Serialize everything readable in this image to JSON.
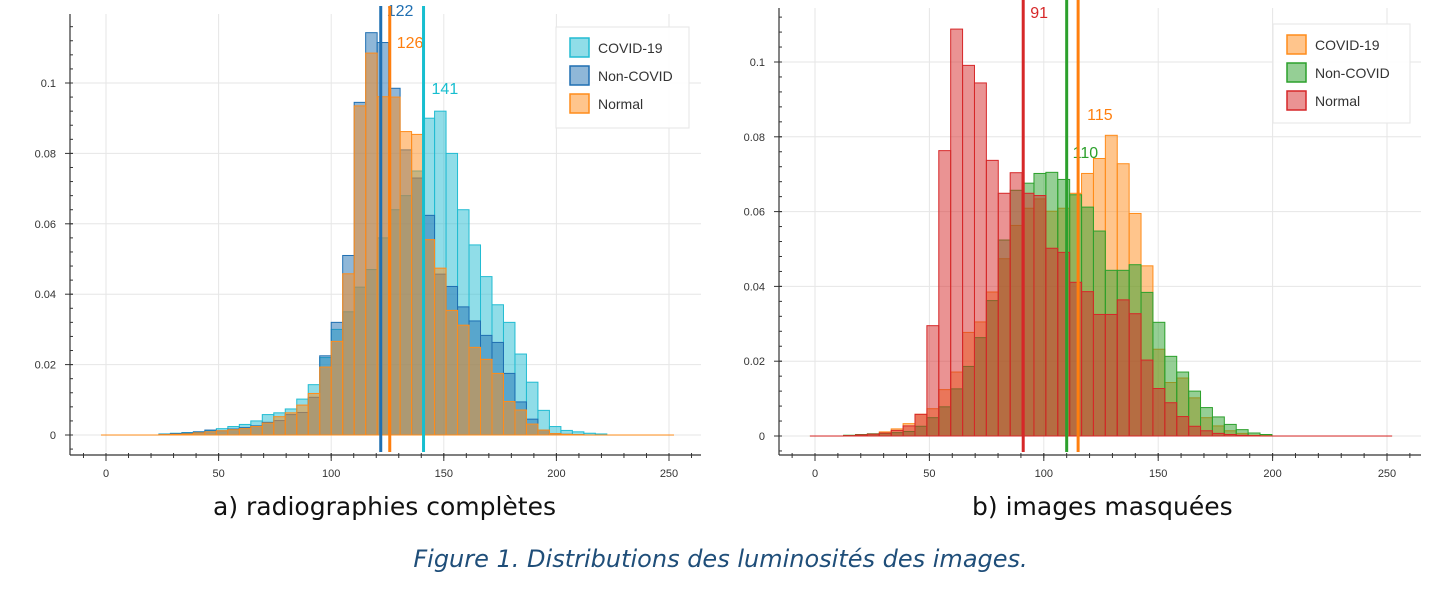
{
  "figure_caption": "Figure 1. Distributions des luminosités des images.",
  "chart_data": [
    {
      "type": "histogram",
      "caption": "a) radiographies complètes",
      "xlim": [
        -5,
        262
      ],
      "ylim": [
        -0.006,
        0.1195
      ],
      "xticks": [
        0,
        50,
        100,
        150,
        200,
        250
      ],
      "yticks": [
        0,
        0.02,
        0.04,
        0.06,
        0.08,
        0.1
      ],
      "ytick_labels": [
        "0",
        "0.02",
        "0.04",
        "0.06",
        "0.08",
        "0.1"
      ],
      "grid": true,
      "legend_position": "top-right",
      "bin_edges": [
        -2,
        23.5,
        28.6,
        33.7,
        38.8,
        43.9,
        49,
        54.1,
        59.2,
        64.3,
        69.4,
        74.5,
        79.6,
        84.7,
        89.8,
        94.9,
        100,
        105.1,
        110.2,
        115.3,
        120.4,
        125.5,
        130.6,
        135.7,
        140.8,
        145.9,
        151,
        156.1,
        161.2,
        166.3,
        171.4,
        176.5,
        181.6,
        186.7,
        191.8,
        196.9,
        202,
        207.1,
        212.2,
        217.3,
        222.4,
        252
      ],
      "series": [
        {
          "name": "COVID-19",
          "color": "#22bcd2",
          "values": [
            0,
            0.0003,
            0.0005,
            0.0007,
            0.0009,
            0.0013,
            0.0018,
            0.0024,
            0.003,
            0.004,
            0.0058,
            0.0063,
            0.0074,
            0.0102,
            0.0143,
            0.022,
            0.03,
            0.035,
            0.042,
            0.047,
            0.056,
            0.064,
            0.068,
            0.075,
            0.09,
            0.092,
            0.08,
            0.064,
            0.054,
            0.045,
            0.037,
            0.032,
            0.023,
            0.015,
            0.007,
            0.0024,
            0.0013,
            0.0009,
            0.0005,
            0.0003,
            0
          ]
        },
        {
          "name": "Non-COVID",
          "color": "#1f6fb2",
          "values": [
            0,
            0.0002,
            0.0004,
            0.0006,
            0.0009,
            0.0014,
            0.0012,
            0.0017,
            0.0021,
            0.0026,
            0.0036,
            0.0041,
            0.0058,
            0.0064,
            0.0107,
            0.0225,
            0.032,
            0.051,
            0.0945,
            0.1143,
            0.1115,
            0.0985,
            0.081,
            0.073,
            0.0624,
            0.0457,
            0.0422,
            0.0364,
            0.0324,
            0.0283,
            0.0263,
            0.0175,
            0.0094,
            0.0045,
            0.0014,
            0.0004,
            0.0002,
            0.0001,
            0,
            0,
            0
          ]
        },
        {
          "name": "Normal",
          "color": "#ff8c1a",
          "values": [
            0,
            0.0001,
            0.0002,
            0.0003,
            0.0006,
            0.0009,
            0.0012,
            0.0015,
            0.0018,
            0.0024,
            0.0034,
            0.0052,
            0.0063,
            0.0085,
            0.0118,
            0.0193,
            0.0266,
            0.0458,
            0.0935,
            0.1085,
            0.0961,
            0.096,
            0.0862,
            0.0854,
            0.0555,
            0.0474,
            0.0354,
            0.0312,
            0.0249,
            0.0215,
            0.0175,
            0.0095,
            0.0071,
            0.0031,
            0.0014,
            0.0004,
            0.0002,
            0.0001,
            0,
            0,
            0
          ]
        }
      ],
      "mean_lines": [
        {
          "series": "Non-COVID",
          "x": 122,
          "label": "122",
          "color": "#1f6fb2"
        },
        {
          "series": "Normal",
          "x": 126,
          "label": "126",
          "color": "#ff7f0e"
        },
        {
          "series": "COVID-19",
          "x": 141,
          "label": "141",
          "color": "#17becf"
        }
      ]
    },
    {
      "type": "histogram",
      "caption": "b) images masquées",
      "xlim": [
        -5,
        262
      ],
      "ylim": [
        -0.005,
        0.1145
      ],
      "xticks": [
        0,
        50,
        100,
        150,
        200,
        250
      ],
      "yticks": [
        0,
        0.02,
        0.04,
        0.06,
        0.08,
        0.1
      ],
      "ytick_labels": [
        "0",
        "0.02",
        "0.04",
        "0.06",
        "0.08",
        "0.1"
      ],
      "grid": true,
      "legend_position": "top-right",
      "bin_edges": [
        -2,
        12.5,
        17.7,
        22.9,
        28.1,
        33.3,
        38.5,
        43.7,
        48.9,
        54.1,
        59.3,
        64.5,
        69.7,
        74.9,
        80.1,
        85.3,
        90.5,
        95.7,
        100.9,
        106.1,
        111.3,
        116.5,
        121.7,
        126.9,
        132.1,
        137.3,
        142.5,
        147.7,
        152.9,
        158.1,
        163.3,
        168.5,
        173.7,
        178.9,
        184.1,
        189.3,
        194.5,
        199.7,
        252
      ],
      "series": [
        {
          "name": "COVID-19",
          "color": "#ff8c1a",
          "values": [
            0,
            0.0001,
            0.0002,
            0.0005,
            0.0011,
            0.0019,
            0.0033,
            0.0058,
            0.0073,
            0.0124,
            0.0171,
            0.0277,
            0.0305,
            0.0385,
            0.0474,
            0.0563,
            0.0609,
            0.0634,
            0.0601,
            0.0609,
            0.0649,
            0.0702,
            0.0742,
            0.0804,
            0.0728,
            0.0595,
            0.0455,
            0.0232,
            0.0143,
            0.0155,
            0.0102,
            0.0049,
            0.0027,
            0.0014,
            0.0007,
            0.0002,
            0.0001,
            0
          ]
        },
        {
          "name": "Non-COVID",
          "color": "#2ca02c",
          "values": [
            0,
            0.0002,
            0.0004,
            0.0006,
            0.0007,
            0.0009,
            0.0012,
            0.0026,
            0.0049,
            0.0078,
            0.0126,
            0.0186,
            0.0263,
            0.0362,
            0.0524,
            0.0657,
            0.0676,
            0.0702,
            0.0705,
            0.0686,
            0.0645,
            0.0612,
            0.0548,
            0.0443,
            0.0443,
            0.0458,
            0.0384,
            0.0304,
            0.0213,
            0.0171,
            0.012,
            0.0076,
            0.0051,
            0.0031,
            0.0017,
            0.0008,
            0.0004,
            0
          ]
        },
        {
          "name": "Normal",
          "color": "#d62728",
          "values": [
            0,
            0.0001,
            0.0003,
            0.0005,
            0.0008,
            0.0015,
            0.0027,
            0.0058,
            0.0295,
            0.0763,
            0.1088,
            0.0991,
            0.0944,
            0.0737,
            0.0649,
            0.0704,
            0.0649,
            0.0643,
            0.0502,
            0.0491,
            0.0411,
            0.0386,
            0.0325,
            0.0325,
            0.0364,
            0.0327,
            0.0203,
            0.0127,
            0.0089,
            0.0052,
            0.0026,
            0.0014,
            0.0007,
            0.0004,
            0.0002,
            0.0001,
            0,
            0
          ]
        }
      ],
      "mean_lines": [
        {
          "series": "Normal",
          "x": 91,
          "label": "91",
          "color": "#d62728"
        },
        {
          "series": "Non-COVID",
          "x": 110,
          "label": "110",
          "color": "#2ca02c"
        },
        {
          "series": "COVID-19",
          "x": 115,
          "label": "115",
          "color": "#ff7f0e"
        }
      ]
    }
  ]
}
